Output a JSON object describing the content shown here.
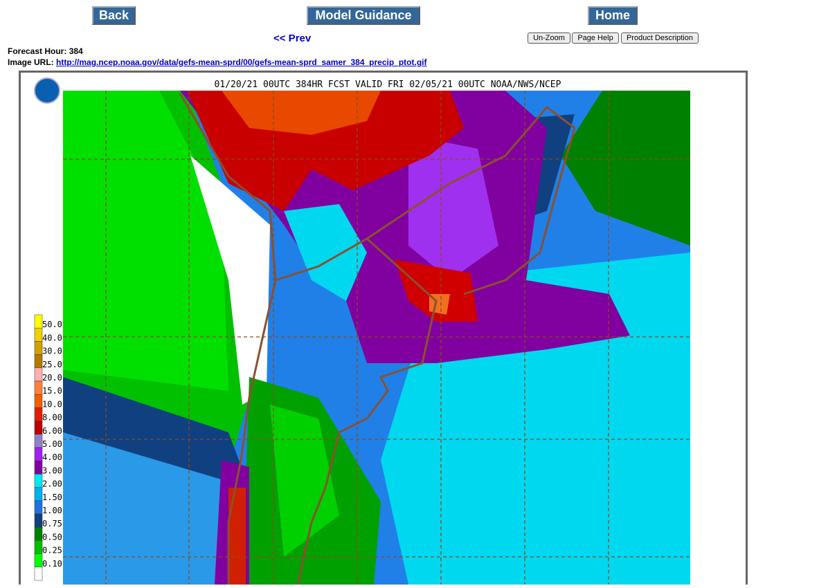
{
  "nav": {
    "back": "Back",
    "model_guidance": "Model Guidance",
    "home": "Home",
    "prev": "<< Prev",
    "unzoom": "Un-Zoom",
    "page_help": "Page Help",
    "product_description": "Product Description"
  },
  "info": {
    "forecast_hour_label": "Forecast Hour:",
    "forecast_hour": "384",
    "image_url_label": "Image URL:",
    "image_url": "http://mag.ncep.noaa.gov/data/gefs-mean-sprd/00/gefs-mean-sprd_samer_384_precip_ptot.gif"
  },
  "map": {
    "title": "01/20/21 00UTC 384HR FCST VALID FRI 02/05/21 00UTC NOAA/NWS/NCEP",
    "legend": [
      {
        "label": "50.0",
        "color": "#ffff00"
      },
      {
        "label": "40.0",
        "color": "#f0d000"
      },
      {
        "label": "30.0",
        "color": "#d4a000"
      },
      {
        "label": "25.0",
        "color": "#b87800"
      },
      {
        "label": "20.0",
        "color": "#ffb0b0"
      },
      {
        "label": "15.0",
        "color": "#ff8040"
      },
      {
        "label": "10.0",
        "color": "#f06000"
      },
      {
        "label": "8.00",
        "color": "#e02000"
      },
      {
        "label": "6.00",
        "color": "#c00000"
      },
      {
        "label": "5.00",
        "color": "#9080d0"
      },
      {
        "label": "4.00",
        "color": "#a020f0"
      },
      {
        "label": "3.00",
        "color": "#8000a0"
      },
      {
        "label": "2.00",
        "color": "#00e8f0"
      },
      {
        "label": "1.50",
        "color": "#00b0f0"
      },
      {
        "label": "1.00",
        "color": "#2070e0"
      },
      {
        "label": "0.75",
        "color": "#104080"
      },
      {
        "label": "0.50",
        "color": "#008000"
      },
      {
        "label": "0.25",
        "color": "#00c000"
      },
      {
        "label": "0.10",
        "color": "#00ff00"
      }
    ]
  }
}
